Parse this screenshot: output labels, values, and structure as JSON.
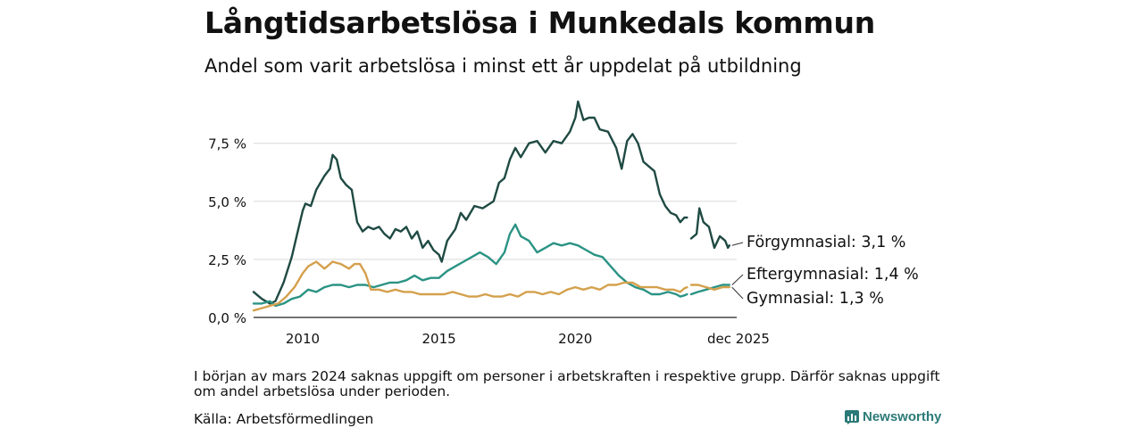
{
  "title": "Långtidsarbetslösa i Munkedals kommun",
  "subtitle": "Andel som varit arbetslösa i minst ett år uppdelat på utbildning",
  "note": "I början av mars 2024 saknas uppgift om personer i arbetskraften i respektive grupp. Därför saknas uppgift om andel arbetslösa under perioden.",
  "source": "Källa: Arbetsförmedlingen",
  "brand": "Newsworthy",
  "chart_data": {
    "type": "line",
    "title": "Långtidsarbetslösa i Munkedals kommun",
    "ylabel": "",
    "xlabel": "",
    "ylim": [
      0,
      9.6
    ],
    "xlim": [
      2008.2,
      2025.92
    ],
    "yticks": [
      0,
      2.5,
      5.0,
      7.5
    ],
    "ytick_labels": [
      "0,0 %",
      "2,5 %",
      "5,0 %",
      "7,5 %"
    ],
    "xticks": [
      2010,
      2015,
      2020,
      2025.92
    ],
    "xtick_labels": [
      "2010",
      "2015",
      "2020",
      "dec 2025"
    ],
    "gap": [
      2024.1,
      2024.25
    ],
    "series": [
      {
        "name": "Förgymnasial",
        "label": "Förgymnasial: 3,1 %",
        "color": "#1f4a43",
        "points": [
          [
            2008.2,
            1.1
          ],
          [
            2008.5,
            0.8
          ],
          [
            2008.8,
            0.6
          ],
          [
            2009.0,
            0.7
          ],
          [
            2009.3,
            1.5
          ],
          [
            2009.6,
            2.6
          ],
          [
            2009.8,
            3.6
          ],
          [
            2010.0,
            4.6
          ],
          [
            2010.1,
            4.9
          ],
          [
            2010.3,
            4.8
          ],
          [
            2010.5,
            5.5
          ],
          [
            2010.8,
            6.1
          ],
          [
            2011.0,
            6.4
          ],
          [
            2011.1,
            7.0
          ],
          [
            2011.25,
            6.8
          ],
          [
            2011.4,
            6.0
          ],
          [
            2011.6,
            5.7
          ],
          [
            2011.8,
            5.5
          ],
          [
            2012.0,
            4.1
          ],
          [
            2012.2,
            3.7
          ],
          [
            2012.4,
            3.9
          ],
          [
            2012.6,
            3.8
          ],
          [
            2012.8,
            3.9
          ],
          [
            2013.0,
            3.6
          ],
          [
            2013.2,
            3.4
          ],
          [
            2013.4,
            3.8
          ],
          [
            2013.6,
            3.7
          ],
          [
            2013.8,
            3.9
          ],
          [
            2014.0,
            3.4
          ],
          [
            2014.2,
            3.7
          ],
          [
            2014.4,
            3.0
          ],
          [
            2014.6,
            3.3
          ],
          [
            2014.8,
            2.9
          ],
          [
            2015.0,
            2.7
          ],
          [
            2015.1,
            2.4
          ],
          [
            2015.3,
            3.3
          ],
          [
            2015.6,
            3.8
          ],
          [
            2015.8,
            4.5
          ],
          [
            2016.0,
            4.2
          ],
          [
            2016.3,
            4.8
          ],
          [
            2016.6,
            4.7
          ],
          [
            2017.0,
            5.0
          ],
          [
            2017.2,
            5.8
          ],
          [
            2017.4,
            6.0
          ],
          [
            2017.6,
            6.8
          ],
          [
            2017.8,
            7.3
          ],
          [
            2018.0,
            6.9
          ],
          [
            2018.3,
            7.5
          ],
          [
            2018.6,
            7.6
          ],
          [
            2018.9,
            7.1
          ],
          [
            2019.2,
            7.6
          ],
          [
            2019.5,
            7.5
          ],
          [
            2019.8,
            8.0
          ],
          [
            2020.0,
            8.6
          ],
          [
            2020.1,
            9.3
          ],
          [
            2020.3,
            8.5
          ],
          [
            2020.5,
            8.6
          ],
          [
            2020.7,
            8.6
          ],
          [
            2020.9,
            8.1
          ],
          [
            2021.2,
            8.0
          ],
          [
            2021.5,
            7.3
          ],
          [
            2021.7,
            6.4
          ],
          [
            2021.9,
            7.6
          ],
          [
            2022.1,
            7.9
          ],
          [
            2022.3,
            7.5
          ],
          [
            2022.5,
            6.7
          ],
          [
            2022.7,
            6.5
          ],
          [
            2022.9,
            6.3
          ],
          [
            2023.1,
            5.3
          ],
          [
            2023.3,
            4.8
          ],
          [
            2023.5,
            4.5
          ],
          [
            2023.7,
            4.4
          ],
          [
            2023.85,
            4.1
          ],
          [
            2024.0,
            4.3
          ],
          [
            2024.1,
            4.3
          ],
          [
            2024.25,
            3.4
          ],
          [
            2024.45,
            3.6
          ],
          [
            2024.55,
            4.7
          ],
          [
            2024.7,
            4.1
          ],
          [
            2024.9,
            3.9
          ],
          [
            2025.1,
            3.0
          ],
          [
            2025.3,
            3.5
          ],
          [
            2025.5,
            3.3
          ],
          [
            2025.6,
            3.0
          ],
          [
            2025.65,
            3.1
          ]
        ]
      },
      {
        "name": "Eftergymnasial",
        "label": "Eftergymnasial: 1,4 %",
        "color": "#2a9384",
        "points": [
          [
            2008.2,
            0.6
          ],
          [
            2008.5,
            0.6
          ],
          [
            2008.8,
            0.7
          ],
          [
            2009.0,
            0.5
          ],
          [
            2009.3,
            0.6
          ],
          [
            2009.6,
            0.8
          ],
          [
            2009.9,
            0.9
          ],
          [
            2010.2,
            1.2
          ],
          [
            2010.5,
            1.1
          ],
          [
            2010.8,
            1.3
          ],
          [
            2011.1,
            1.4
          ],
          [
            2011.4,
            1.4
          ],
          [
            2011.7,
            1.3
          ],
          [
            2012.0,
            1.4
          ],
          [
            2012.3,
            1.4
          ],
          [
            2012.6,
            1.3
          ],
          [
            2012.9,
            1.4
          ],
          [
            2013.2,
            1.5
          ],
          [
            2013.5,
            1.5
          ],
          [
            2013.8,
            1.6
          ],
          [
            2014.1,
            1.8
          ],
          [
            2014.4,
            1.6
          ],
          [
            2014.7,
            1.7
          ],
          [
            2015.0,
            1.7
          ],
          [
            2015.3,
            2.0
          ],
          [
            2015.6,
            2.2
          ],
          [
            2015.9,
            2.4
          ],
          [
            2016.2,
            2.6
          ],
          [
            2016.5,
            2.8
          ],
          [
            2016.8,
            2.6
          ],
          [
            2017.1,
            2.3
          ],
          [
            2017.4,
            2.8
          ],
          [
            2017.6,
            3.6
          ],
          [
            2017.8,
            4.0
          ],
          [
            2018.0,
            3.5
          ],
          [
            2018.3,
            3.3
          ],
          [
            2018.6,
            2.8
          ],
          [
            2018.9,
            3.0
          ],
          [
            2019.2,
            3.2
          ],
          [
            2019.5,
            3.1
          ],
          [
            2019.8,
            3.2
          ],
          [
            2020.1,
            3.1
          ],
          [
            2020.4,
            2.9
          ],
          [
            2020.7,
            2.7
          ],
          [
            2021.0,
            2.6
          ],
          [
            2021.3,
            2.2
          ],
          [
            2021.6,
            1.8
          ],
          [
            2021.9,
            1.5
          ],
          [
            2022.2,
            1.3
          ],
          [
            2022.5,
            1.2
          ],
          [
            2022.8,
            1.0
          ],
          [
            2023.1,
            1.0
          ],
          [
            2023.4,
            1.1
          ],
          [
            2023.7,
            1.0
          ],
          [
            2023.85,
            0.9
          ],
          [
            2024.0,
            0.95
          ],
          [
            2024.1,
            1.0
          ],
          [
            2024.25,
            1.0
          ],
          [
            2024.5,
            1.1
          ],
          [
            2024.8,
            1.2
          ],
          [
            2025.1,
            1.3
          ],
          [
            2025.4,
            1.4
          ],
          [
            2025.65,
            1.4
          ]
        ]
      },
      {
        "name": "Gymnasial",
        "label": "Gymnasial: 1,3 %",
        "color": "#d4a04c",
        "points": [
          [
            2008.2,
            0.3
          ],
          [
            2008.5,
            0.4
          ],
          [
            2008.8,
            0.5
          ],
          [
            2009.1,
            0.6
          ],
          [
            2009.4,
            0.9
          ],
          [
            2009.7,
            1.3
          ],
          [
            2010.0,
            1.9
          ],
          [
            2010.2,
            2.2
          ],
          [
            2010.5,
            2.4
          ],
          [
            2010.8,
            2.1
          ],
          [
            2011.1,
            2.4
          ],
          [
            2011.4,
            2.3
          ],
          [
            2011.7,
            2.1
          ],
          [
            2011.9,
            2.3
          ],
          [
            2012.1,
            2.3
          ],
          [
            2012.3,
            1.9
          ],
          [
            2012.5,
            1.2
          ],
          [
            2012.8,
            1.2
          ],
          [
            2013.1,
            1.1
          ],
          [
            2013.4,
            1.2
          ],
          [
            2013.7,
            1.1
          ],
          [
            2014.0,
            1.1
          ],
          [
            2014.3,
            1.0
          ],
          [
            2014.6,
            1.0
          ],
          [
            2014.9,
            1.0
          ],
          [
            2015.2,
            1.0
          ],
          [
            2015.5,
            1.1
          ],
          [
            2015.8,
            1.0
          ],
          [
            2016.1,
            0.9
          ],
          [
            2016.4,
            0.9
          ],
          [
            2016.7,
            1.0
          ],
          [
            2017.0,
            0.9
          ],
          [
            2017.3,
            0.9
          ],
          [
            2017.6,
            1.0
          ],
          [
            2017.9,
            0.9
          ],
          [
            2018.2,
            1.1
          ],
          [
            2018.5,
            1.1
          ],
          [
            2018.8,
            1.0
          ],
          [
            2019.1,
            1.1
          ],
          [
            2019.4,
            1.0
          ],
          [
            2019.7,
            1.2
          ],
          [
            2020.0,
            1.3
          ],
          [
            2020.3,
            1.2
          ],
          [
            2020.6,
            1.3
          ],
          [
            2020.9,
            1.2
          ],
          [
            2021.2,
            1.4
          ],
          [
            2021.5,
            1.4
          ],
          [
            2021.8,
            1.5
          ],
          [
            2022.1,
            1.5
          ],
          [
            2022.4,
            1.3
          ],
          [
            2022.7,
            1.3
          ],
          [
            2023.0,
            1.3
          ],
          [
            2023.3,
            1.2
          ],
          [
            2023.6,
            1.2
          ],
          [
            2023.85,
            1.1
          ],
          [
            2024.0,
            1.25
          ],
          [
            2024.1,
            1.3
          ],
          [
            2024.25,
            1.4
          ],
          [
            2024.5,
            1.4
          ],
          [
            2024.8,
            1.3
          ],
          [
            2025.1,
            1.2
          ],
          [
            2025.4,
            1.3
          ],
          [
            2025.65,
            1.3
          ]
        ]
      }
    ]
  }
}
